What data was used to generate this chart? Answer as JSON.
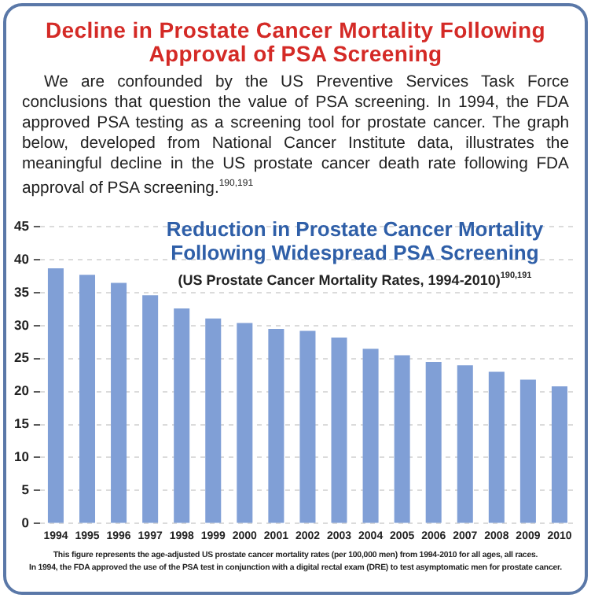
{
  "chart_data": {
    "type": "bar",
    "title": "Reduction in Prostate Cancer Mortality Following Widespread PSA Screening",
    "subtitle": "(US Prostate Cancer Mortality Rates, 1994-2010)$^{190,191}$",
    "categories": [
      "1994",
      "1995",
      "1996",
      "1997",
      "1998",
      "1999",
      "2000",
      "2001",
      "2002",
      "2003",
      "2004",
      "2005",
      "2006",
      "2007",
      "2008",
      "2009",
      "2010"
    ],
    "values": [
      38.7,
      37.7,
      36.5,
      34.6,
      32.6,
      31.1,
      30.4,
      29.5,
      29.2,
      28.2,
      26.5,
      25.5,
      24.5,
      24.0,
      23.0,
      21.8,
      20.8
    ],
    "color": "#809fd6",
    "ylim": [
      0,
      45
    ],
    "yticks": [
      0,
      5,
      10,
      15,
      20,
      25,
      30,
      35,
      40,
      45
    ],
    "grid": "y",
    "annotations": [
      "Decline in Prostate Cancer Mortality Following Approval of PSA Screening",
      "We are confounded by the US Preventive Services Task Force conclusions that question the value of PSA screening. In 1994, the FDA approved PSA testing as a screening tool for prostate cancer. The graph below, developed from National Cancer Institute data, illustrates the meaningful decline in the US prostate cancer death rate following FDA approval of PSA screening.$^{190,191}$",
      "This figure represents the age-adjusted US prostate cancer mortality rates (per 100,000 men) from 1994-2010 for all ages, all races.",
      "In 1994, the FDA approved the use of the PSA test in conjunction with a digital rectal exam (DRE) to test asymptomatic men for prostate cancer."
    ]
  }
}
